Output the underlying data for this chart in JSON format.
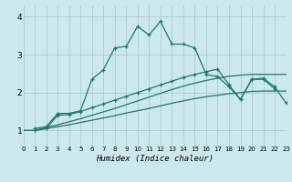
{
  "xlabel": "Humidex (Indice chaleur)",
  "bg_color": "#cce8ec",
  "grid_color": "#aaccd4",
  "line_color": "#1a7a6a",
  "xlim": [
    0,
    23
  ],
  "ylim": [
    0.6,
    4.3
  ],
  "yticks": [
    1,
    2,
    3,
    4
  ],
  "xticks": [
    0,
    1,
    2,
    3,
    4,
    5,
    6,
    7,
    8,
    9,
    10,
    11,
    12,
    13,
    14,
    15,
    16,
    17,
    18,
    19,
    20,
    21,
    22,
    23
  ],
  "line1_x": [
    0,
    1,
    2,
    3,
    4,
    5,
    6,
    7,
    8,
    9,
    10,
    11,
    12,
    13,
    14,
    15,
    16,
    17,
    18,
    19,
    20,
    21,
    22,
    23
  ],
  "line1_y": [
    1.0,
    1.0,
    1.05,
    1.1,
    1.15,
    1.21,
    1.27,
    1.33,
    1.39,
    1.46,
    1.52,
    1.58,
    1.65,
    1.72,
    1.78,
    1.84,
    1.89,
    1.93,
    1.97,
    2.0,
    2.03,
    2.04,
    2.04,
    2.04
  ],
  "line2_x": [
    0,
    1,
    2,
    3,
    4,
    5,
    6,
    7,
    8,
    9,
    10,
    11,
    12,
    13,
    14,
    15,
    16,
    17,
    18,
    19,
    20,
    21,
    22,
    23
  ],
  "line2_y": [
    1.0,
    1.0,
    1.08,
    1.15,
    1.23,
    1.31,
    1.4,
    1.49,
    1.58,
    1.68,
    1.78,
    1.88,
    1.98,
    2.08,
    2.17,
    2.25,
    2.32,
    2.38,
    2.43,
    2.46,
    2.48,
    2.48,
    2.48,
    2.48
  ],
  "line3_x": [
    1,
    2,
    3,
    4,
    5,
    6,
    7,
    8,
    9,
    10,
    11,
    12,
    13,
    14,
    15,
    16,
    17,
    18,
    19,
    20,
    21,
    22
  ],
  "line3_y": [
    1.05,
    1.1,
    1.45,
    1.45,
    1.52,
    2.35,
    2.6,
    3.18,
    3.22,
    3.75,
    3.52,
    3.88,
    3.28,
    3.28,
    3.18,
    2.48,
    2.42,
    2.15,
    1.82,
    2.35,
    2.35,
    2.1
  ],
  "line4_x": [
    1,
    2,
    3,
    4,
    5,
    6,
    7,
    8,
    9,
    10,
    11,
    12,
    13,
    14,
    15,
    16,
    17,
    18,
    19,
    20,
    21,
    22,
    23
  ],
  "line4_y": [
    1.0,
    1.05,
    1.4,
    1.42,
    1.5,
    1.6,
    1.7,
    1.8,
    1.9,
    2.0,
    2.1,
    2.2,
    2.3,
    2.4,
    2.48,
    2.55,
    2.62,
    2.2,
    1.82,
    2.35,
    2.38,
    2.15,
    1.72
  ]
}
